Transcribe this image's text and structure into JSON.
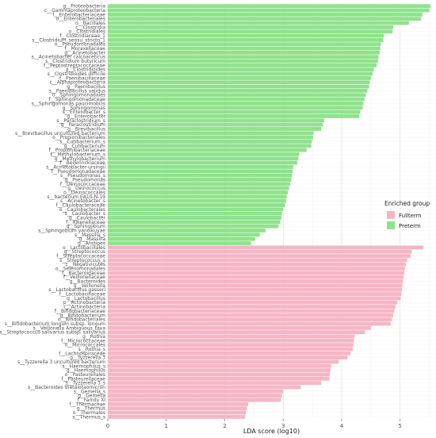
{
  "chart_data": {
    "type": "bar",
    "orientation": "horizontal",
    "xlabel": "LDA score (log10)",
    "xlim": [
      0,
      5.6
    ],
    "xticks": [
      0,
      1,
      2,
      3,
      4,
      5
    ],
    "grid": true,
    "legend": {
      "title": "Enriched group",
      "position": "right",
      "entries": [
        {
          "name": "Fullterm",
          "color": "#F7B5C4"
        },
        {
          "name": "Preterm",
          "color": "#8FE28C"
        }
      ]
    },
    "series": [
      {
        "name": "Preterm",
        "color": "#8FE28C",
        "categories": [
          "g__Proteobacteria",
          "c__Gammaproteobacteria",
          "f__Enterobacteriaceae",
          "o__Enterobacteriales",
          "o__Bacillales",
          "c__Clostridia",
          "o__Clostridiales",
          "f__Clostridiaceae_1",
          "s__Clostridium_sensu_stricto_1",
          "o__Pseudomonadales",
          "f__Moraxellaceae",
          "g__Acinetobacter",
          "s__Acinetobacter calcoaceticus",
          "s__Clostridium butyricum",
          "f__Peptostreptococcaceae",
          "g__Clostridioides",
          "s__Clostridioides difficile",
          "f__Paenibacillaceae",
          "c__Alphaproteobacteria",
          "g__Paenibacillus",
          "s__Paenibacillus validus",
          "o__Sphingomonadales",
          "f__Sphingomonadaceae",
          "s__Sphingomonas paucimobilis",
          "g__Sphingomonas",
          "s__Enterobacter_s",
          "g__Enterobacter",
          "s__Paraclostridium_s",
          "g__Paraclostridium",
          "g__Brevibacillus",
          "s__Brevibacillus uncultured bacterium",
          "o__Propionibacteriales",
          "s__Cutibacterium_s",
          "g__Cutibacterium",
          "f__Propionibacteriaceae",
          "s__Methylobacterium_s",
          "g__Methylobacterium",
          "f__Beijerinckiaceae",
          "s__Acinetobacter ursingii",
          "f__Pseudomonadaceae",
          "s__Pseudomonas_s",
          "g__Pseudomonas",
          "f__Deinococcaceae",
          "g__Deinococcus",
          "o__Deinococcales",
          "s__bacterium EA10-N-19",
          "s__Acinetobacter_s",
          "f__Caulobacteraceae",
          "o__Caulobacterales",
          "s__Caulobacter_s",
          "g__Caulobacter",
          "f__Rikenellaceae",
          "g__Sphingobium",
          "s__Sphingobium yanoikuyae",
          "s__Massilia_s",
          "g__Massilia",
          "g__Alistipes"
        ],
        "values": [
          5.52,
          5.5,
          5.38,
          5.36,
          5.15,
          4.88,
          4.87,
          4.72,
          4.71,
          4.67,
          4.66,
          4.65,
          4.63,
          4.62,
          4.6,
          4.55,
          4.53,
          4.5,
          4.48,
          4.47,
          4.44,
          4.41,
          4.39,
          4.37,
          4.36,
          4.32,
          4.3,
          3.7,
          3.68,
          3.65,
          3.52,
          3.51,
          3.49,
          3.48,
          3.4,
          3.27,
          3.26,
          3.24,
          3.17,
          3.16,
          3.15,
          3.14,
          3.12,
          3.1,
          3.08,
          3.06,
          3.05,
          3.03,
          3.0,
          2.98,
          2.97,
          2.95,
          2.92,
          2.7,
          2.6,
          2.52,
          2.45
        ]
      },
      {
        "name": "Fullterm",
        "color": "#F7B5C4",
        "categories": [
          "o__Lactobacillales",
          "g__Streptococcus",
          "f__Streptococcaceae",
          "s__Streptococcus_s",
          "c__Negativicutes",
          "o__Selenomonadales",
          "f__Bacteroidaceae",
          "f__Veillonellaceae",
          "g__Bacteroides",
          "g__Veillonella",
          "s__Lactobacillus gasseri",
          "f__Lactobacillaceae",
          "g__Lactobacillus",
          "p__Actinobacteria",
          "c__Actinobacteria",
          "f__Bifidobacteriaceae",
          "g__Bifidobacterium",
          "o__Bifidobacteriales",
          "s__Bifidobacterium longum subsp. longum",
          "s__Veillonella Ambiguous_taxa",
          "s__Streptococcus salivarius subsp. salivarius",
          "g__Rothia",
          "f__Micrococcaceae",
          "o__Micrococcales",
          "s__Rothia_s",
          "f__Lachnospiraceae",
          "g__Tyzzerella 3",
          "s__Tyzzerella 3 uncultured bacterium",
          "s__Haemophilus_s",
          "g__Haemophilus",
          "o__Pasteurellales",
          "f__Pasteurellaceae",
          "s__Tyzzerella 3_s",
          "s__Bacteroides thetaiotaomicron",
          "s__Gemella_s",
          "g__Gemella",
          "f__Family XI",
          "f__Thermaceae",
          "g__Thermus",
          "o__Thermales",
          "s__Thermus_s"
        ],
        "values": [
          5.4,
          5.2,
          5.18,
          5.12,
          5.1,
          5.08,
          5.07,
          5.06,
          5.05,
          5.04,
          5.03,
          5.02,
          5.01,
          4.95,
          4.92,
          4.9,
          4.88,
          4.86,
          4.84,
          4.5,
          4.4,
          4.22,
          4.21,
          4.2,
          4.19,
          4.15,
          4.1,
          3.95,
          3.82,
          3.81,
          3.8,
          3.79,
          3.65,
          3.3,
          3.0,
          2.98,
          2.96,
          2.4,
          2.38,
          2.36,
          2.35
        ]
      }
    ]
  }
}
